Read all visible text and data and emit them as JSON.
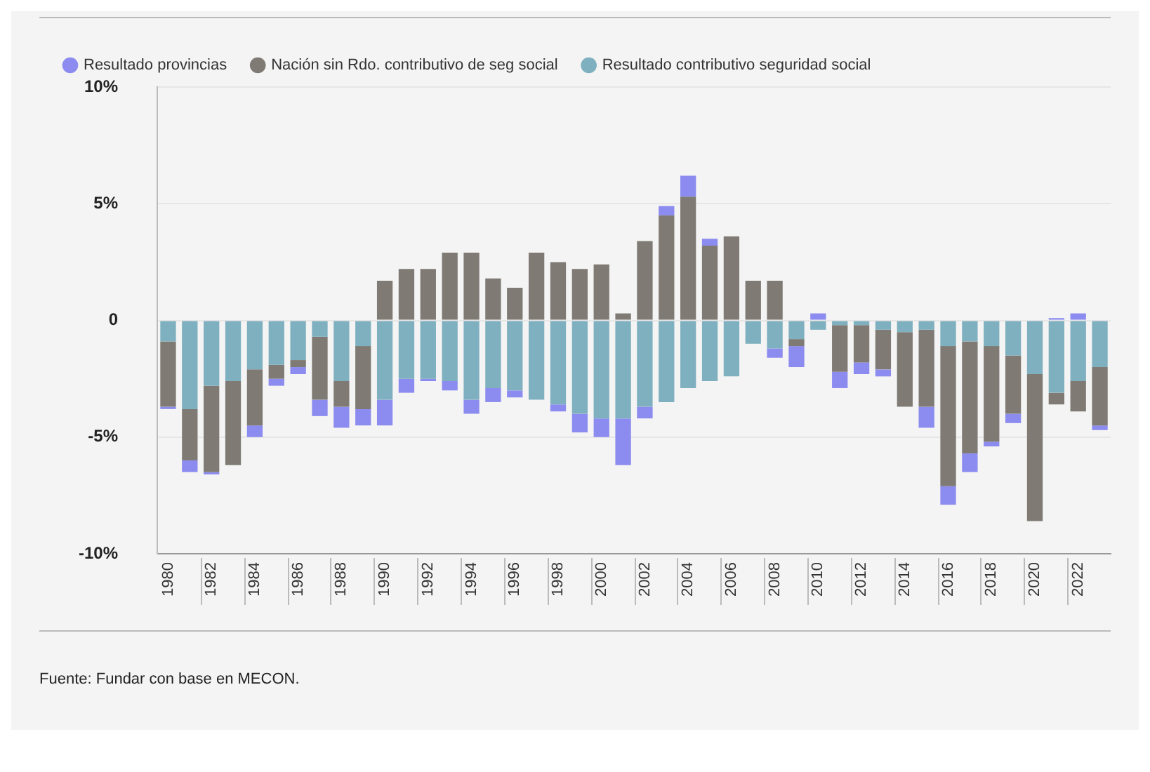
{
  "chart_data": {
    "type": "bar",
    "stacked": true,
    "legend": "top left",
    "grid": "y",
    "categories": [
      "1980",
      null,
      "1982",
      null,
      "1984",
      null,
      "1986",
      null,
      "1988",
      null,
      "1990",
      null,
      "1992",
      null,
      "1994",
      null,
      "1996",
      null,
      "1998",
      null,
      "2000",
      null,
      "2002",
      null,
      "2004",
      null,
      "2006",
      null,
      "2008",
      null,
      "2010",
      null,
      "2012",
      null,
      "2014",
      null,
      "2016",
      null,
      "2018",
      null,
      "2020",
      null,
      "2022",
      null
    ],
    "ylim": [
      -10,
      10
    ],
    "yticks": [
      {
        "value": -10,
        "label": "-10%"
      },
      {
        "value": -5,
        "label": "-5%"
      },
      0,
      {
        "value": 5,
        "label": "5%"
      },
      {
        "value": 10,
        "label": "10%"
      }
    ],
    "series": [
      {
        "name": "Resultado contributivo seguridad social",
        "color": "#7fb0bf",
        "values": [
          -0.9,
          -3.8,
          -2.8,
          -2.6,
          -2.1,
          -1.9,
          -1.7,
          -0.7,
          -2.6,
          -1.1,
          -3.4,
          -2.5,
          -2.5,
          -2.6,
          -3.4,
          -2.9,
          -3.0,
          -3.4,
          -3.6,
          -4.0,
          -4.2,
          -4.2,
          -3.7,
          -3.5,
          -2.9,
          -2.6,
          -2.4,
          -1.0,
          -1.2,
          -0.8,
          -0.4,
          -0.2,
          -0.2,
          -0.4,
          -0.5,
          -0.4,
          -1.1,
          -0.9,
          -1.1,
          -1.5,
          -2.3,
          -3.1,
          -2.6,
          -2.0
        ]
      },
      {
        "name": "Nación sin Rdo. contributivo de seg social",
        "color": "#7f7b74",
        "values": [
          -2.8,
          -2.2,
          -3.7,
          -3.6,
          -2.4,
          -0.6,
          -0.3,
          -2.7,
          -1.1,
          -2.7,
          1.7,
          2.2,
          2.2,
          2.9,
          2.9,
          1.8,
          1.4,
          2.9,
          2.5,
          2.2,
          2.4,
          0.3,
          3.4,
          4.5,
          5.3,
          3.2,
          3.6,
          1.7,
          1.7,
          -0.3,
          null,
          -2.0,
          -1.6,
          -1.7,
          -3.2,
          -3.3,
          -6.0,
          -4.8,
          -4.1,
          -2.5,
          -6.3,
          -0.5,
          -1.3,
          -2.5
        ]
      },
      {
        "name": "Resultado provincias",
        "color": "#8c8cf0",
        "values": [
          -0.1,
          -0.5,
          -0.1,
          null,
          -0.5,
          -0.3,
          -0.3,
          -0.7,
          -0.9,
          -0.7,
          -1.1,
          -0.6,
          -0.1,
          -0.4,
          -0.6,
          -0.6,
          -0.3,
          null,
          -0.3,
          -0.8,
          -0.8,
          -2.0,
          -0.5,
          0.4,
          0.9,
          0.3,
          null,
          null,
          -0.4,
          -0.9,
          0.3,
          -0.7,
          -0.5,
          -0.3,
          null,
          -0.9,
          -0.8,
          -0.8,
          -0.2,
          -0.4,
          null,
          0.1,
          0.3,
          -0.2
        ]
      }
    ],
    "annotations": [
      "Fuente: Fundar con base en MECON."
    ]
  }
}
